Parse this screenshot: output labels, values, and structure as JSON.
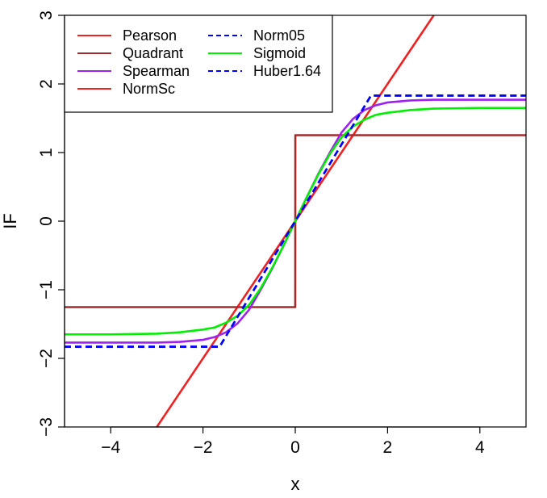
{
  "chart_data": {
    "type": "line",
    "title": "",
    "xlabel": "x",
    "ylabel": "IF",
    "xlim": [
      -5,
      5
    ],
    "ylim": [
      -3,
      3
    ],
    "x_ticks": [
      -4,
      -2,
      0,
      2,
      4
    ],
    "y_ticks": [
      -3,
      -2,
      -1,
      0,
      1,
      2,
      3
    ],
    "x_tick_labels": [
      "−4",
      "−2",
      "0",
      "2",
      "4"
    ],
    "y_tick_labels": [
      "−3",
      "−2",
      "−1",
      "0",
      "1",
      "2",
      "3"
    ],
    "grid": false,
    "legend": {
      "position": "top-left",
      "entries": [
        {
          "name": "Pearson",
          "color": "#ee2222",
          "dash": "solid"
        },
        {
          "name": "Quadrant",
          "color": "#a52a2a",
          "dash": "solid"
        },
        {
          "name": "Spearman",
          "color": "#a020f0",
          "dash": "solid"
        },
        {
          "name": "NormSc",
          "color": "#ee2222",
          "dash": "solid"
        },
        {
          "name": "Norm05",
          "color": "#0000ff",
          "dash": "dashed"
        },
        {
          "name": "Sigmoid",
          "color": "#00ee00",
          "dash": "solid"
        },
        {
          "name": "Huber1.64",
          "color": "#0000ff",
          "dash": "dashed"
        }
      ]
    },
    "series": [
      {
        "name": "Pearson",
        "color": "#ee2222",
        "dash": "solid",
        "x": [
          -3.0,
          3.0
        ],
        "y": [
          -3.0,
          3.0
        ]
      },
      {
        "name": "Quadrant",
        "color": "#a52a2a",
        "dash": "solid",
        "x": [
          -5,
          -0.001,
          0.001,
          5
        ],
        "y": [
          -1.253,
          -1.253,
          1.253,
          1.253
        ]
      },
      {
        "name": "Spearman",
        "color": "#a020f0",
        "dash": "solid",
        "x": [
          -5,
          -4,
          -3,
          -2.5,
          -2,
          -1.75,
          -1.5,
          -1.25,
          -1,
          -0.75,
          -0.5,
          -0.25,
          0,
          0.25,
          0.5,
          0.75,
          1,
          1.25,
          1.5,
          1.75,
          2,
          2.5,
          3,
          4,
          5
        ],
        "y": [
          -1.77,
          -1.77,
          -1.77,
          -1.76,
          -1.73,
          -1.69,
          -1.62,
          -1.49,
          -1.29,
          -1.0,
          -0.69,
          -0.35,
          0,
          0.35,
          0.69,
          1.0,
          1.29,
          1.49,
          1.62,
          1.69,
          1.73,
          1.76,
          1.77,
          1.77,
          1.77
        ]
      },
      {
        "name": "Norm05",
        "color": "#0000ff",
        "dash": "dashed",
        "x": [
          -5,
          -1.64,
          1.64,
          5
        ],
        "y": [
          -1.83,
          -1.83,
          1.83,
          1.83
        ]
      },
      {
        "name": "Sigmoid",
        "color": "#00ee00",
        "dash": "solid",
        "x": [
          -5,
          -4,
          -3,
          -2.5,
          -2,
          -1.75,
          -1.5,
          -1.25,
          -1,
          -0.75,
          -0.5,
          -0.25,
          0,
          0.25,
          0.5,
          0.75,
          1,
          1.25,
          1.5,
          1.75,
          2,
          2.5,
          3,
          4,
          5
        ],
        "y": [
          -1.65,
          -1.65,
          -1.64,
          -1.62,
          -1.58,
          -1.55,
          -1.48,
          -1.38,
          -1.22,
          -0.98,
          -0.68,
          -0.35,
          0,
          0.35,
          0.68,
          0.98,
          1.22,
          1.38,
          1.48,
          1.55,
          1.58,
          1.62,
          1.64,
          1.65,
          1.65
        ]
      },
      {
        "name": "Huber1.64",
        "color": "#0000ff",
        "dash": "dashed",
        "x": [
          -5,
          -1.64,
          1.64,
          5
        ],
        "y": [
          -1.83,
          -1.83,
          1.83,
          1.83
        ]
      }
    ]
  }
}
